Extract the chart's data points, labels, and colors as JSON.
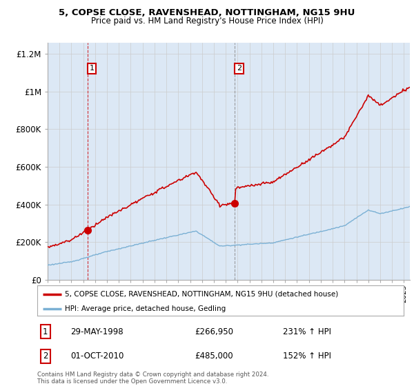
{
  "title": "5, COPSE CLOSE, RAVENSHEAD, NOTTINGHAM, NG15 9HU",
  "subtitle": "Price paid vs. HM Land Registry's House Price Index (HPI)",
  "ylim": [
    0,
    1200000
  ],
  "yticks": [
    0,
    200000,
    400000,
    600000,
    800000,
    1000000,
    1200000
  ],
  "ytick_labels": [
    "£0",
    "£200K",
    "£400K",
    "£600K",
    "£800K",
    "£1M",
    "£1.2M"
  ],
  "legend_line1": "5, COPSE CLOSE, RAVENSHEAD, NOTTINGHAM, NG15 9HU (detached house)",
  "legend_line2": "HPI: Average price, detached house, Gedling",
  "purchase1_date": "29-MAY-1998",
  "purchase1_price": 266950,
  "purchase1_price_str": "£266,950",
  "purchase1_hpi": "231% ↑ HPI",
  "purchase2_date": "01-OCT-2010",
  "purchase2_price": 485000,
  "purchase2_price_str": "£485,000",
  "purchase2_hpi": "152% ↑ HPI",
  "footnote": "Contains HM Land Registry data © Crown copyright and database right 2024.\nThis data is licensed under the Open Government Licence v3.0.",
  "hpi_color": "#7ab0d4",
  "price_color": "#cc0000",
  "grid_color": "#cccccc",
  "bg_color": "#dce8f5",
  "annotation_box_color": "#cc0000",
  "purchase1_t": 1998.37,
  "purchase2_t": 2010.75,
  "purchase1_price_val": 266950,
  "purchase2_price_val": 485000
}
